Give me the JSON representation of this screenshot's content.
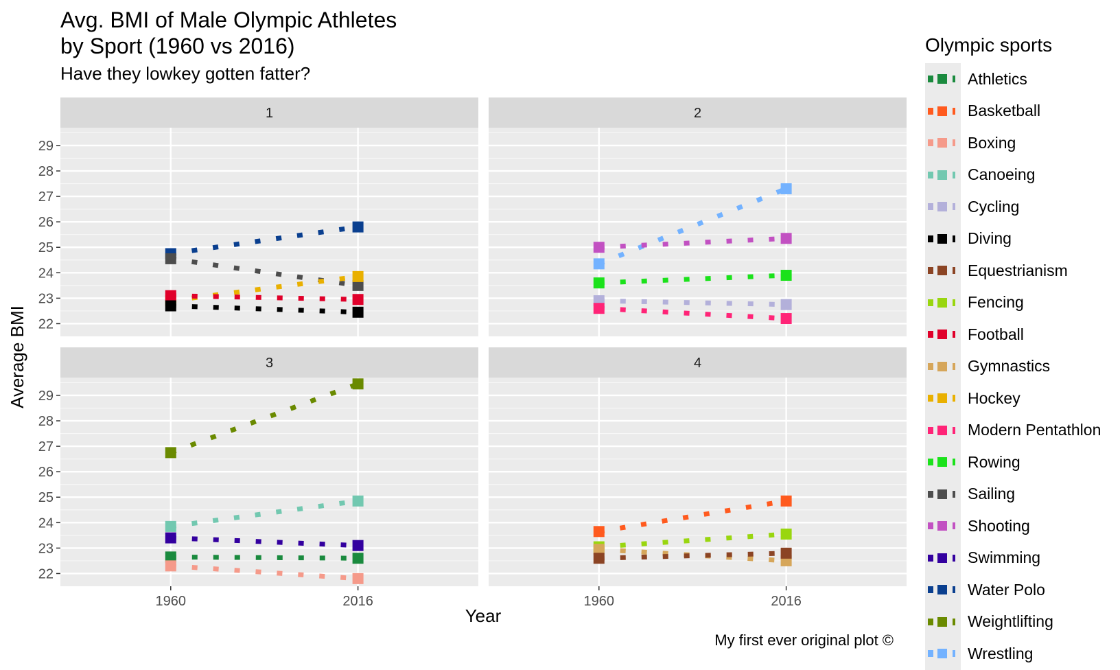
{
  "title_line1": "Avg. BMI of Male Olympic Athletes",
  "title_line2": "by Sport (1960 vs 2016)",
  "subtitle": "Have they lowkey gotten fatter?",
  "caption": "My first ever original plot ©",
  "legend_title": "Olympic sports",
  "chart_data": {
    "type": "line",
    "xlabel": "Year",
    "ylabel": "Average BMI",
    "x_ticks": [
      "1960",
      "2016"
    ],
    "y_ticks": [
      22,
      23,
      24,
      25,
      26,
      27,
      28,
      29
    ],
    "ylim": [
      21.5,
      29.7
    ],
    "xlim": [
      1927,
      2052
    ],
    "grid": true,
    "legend_position": "right",
    "panels": [
      {
        "label": "1",
        "series": [
          {
            "name": "Water Polo",
            "color": "#0a3f8f",
            "y1960": 24.75,
            "y2016": 25.8
          },
          {
            "name": "Sailing",
            "color": "#4d4d4d",
            "y1960": 24.55,
            "y2016": 23.5
          },
          {
            "name": "Hockey",
            "color": "#e9b000",
            "y1960": 22.9,
            "y2016": 23.85
          },
          {
            "name": "Football",
            "color": "#e0002a",
            "y1960": 23.1,
            "y2016": 22.95
          },
          {
            "name": "Diving",
            "color": "#000000",
            "y1960": 22.7,
            "y2016": 22.45
          }
        ]
      },
      {
        "label": "2",
        "series": [
          {
            "name": "Wrestling",
            "color": "#73b2ff",
            "y1960": 24.35,
            "y2016": 27.3
          },
          {
            "name": "Shooting",
            "color": "#c251c2",
            "y1960": 25.0,
            "y2016": 25.35
          },
          {
            "name": "Rowing",
            "color": "#1be21b",
            "y1960": 23.6,
            "y2016": 23.9
          },
          {
            "name": "Cycling",
            "color": "#b3b0da",
            "y1960": 22.9,
            "y2016": 22.75
          },
          {
            "name": "Modern Pentathlon",
            "color": "#ff2477",
            "y1960": 22.6,
            "y2016": 22.2
          }
        ]
      },
      {
        "label": "3",
        "series": [
          {
            "name": "Weightlifting",
            "color": "#6a8a00",
            "y1960": 26.75,
            "y2016": 29.45
          },
          {
            "name": "Canoeing",
            "color": "#72c8b0",
            "y1960": 23.85,
            "y2016": 24.85
          },
          {
            "name": "Swimming",
            "color": "#33009f",
            "y1960": 23.4,
            "y2016": 23.1
          },
          {
            "name": "Athletics",
            "color": "#1a8a3e",
            "y1960": 22.65,
            "y2016": 22.6
          },
          {
            "name": "Boxing",
            "color": "#f59a8a",
            "y1960": 22.3,
            "y2016": 21.8
          }
        ]
      },
      {
        "label": "4",
        "series": [
          {
            "name": "Basketball",
            "color": "#ff5a1e",
            "y1960": 23.65,
            "y2016": 24.85
          },
          {
            "name": "Fencing",
            "color": "#99d60f",
            "y1960": 23.05,
            "y2016": 23.55
          },
          {
            "name": "Gymnastics",
            "color": "#d6a65a",
            "y1960": 22.95,
            "y2016": 22.5
          },
          {
            "name": "Equestrianism",
            "color": "#8b4424",
            "y1960": 22.6,
            "y2016": 22.8
          }
        ]
      }
    ],
    "legend": [
      {
        "name": "Athletics",
        "color": "#1a8a3e"
      },
      {
        "name": "Basketball",
        "color": "#ff5a1e"
      },
      {
        "name": "Boxing",
        "color": "#f59a8a"
      },
      {
        "name": "Canoeing",
        "color": "#72c8b0"
      },
      {
        "name": "Cycling",
        "color": "#b3b0da"
      },
      {
        "name": "Diving",
        "color": "#000000"
      },
      {
        "name": "Equestrianism",
        "color": "#8b4424"
      },
      {
        "name": "Fencing",
        "color": "#99d60f"
      },
      {
        "name": "Football",
        "color": "#e0002a"
      },
      {
        "name": "Gymnastics",
        "color": "#d6a65a"
      },
      {
        "name": "Hockey",
        "color": "#e9b000"
      },
      {
        "name": "Modern Pentathlon",
        "color": "#ff2477"
      },
      {
        "name": "Rowing",
        "color": "#1be21b"
      },
      {
        "name": "Sailing",
        "color": "#4d4d4d"
      },
      {
        "name": "Shooting",
        "color": "#c251c2"
      },
      {
        "name": "Swimming",
        "color": "#33009f"
      },
      {
        "name": "Water Polo",
        "color": "#0a3f8f"
      },
      {
        "name": "Weightlifting",
        "color": "#6a8a00"
      },
      {
        "name": "Wrestling",
        "color": "#73b2ff"
      }
    ]
  }
}
